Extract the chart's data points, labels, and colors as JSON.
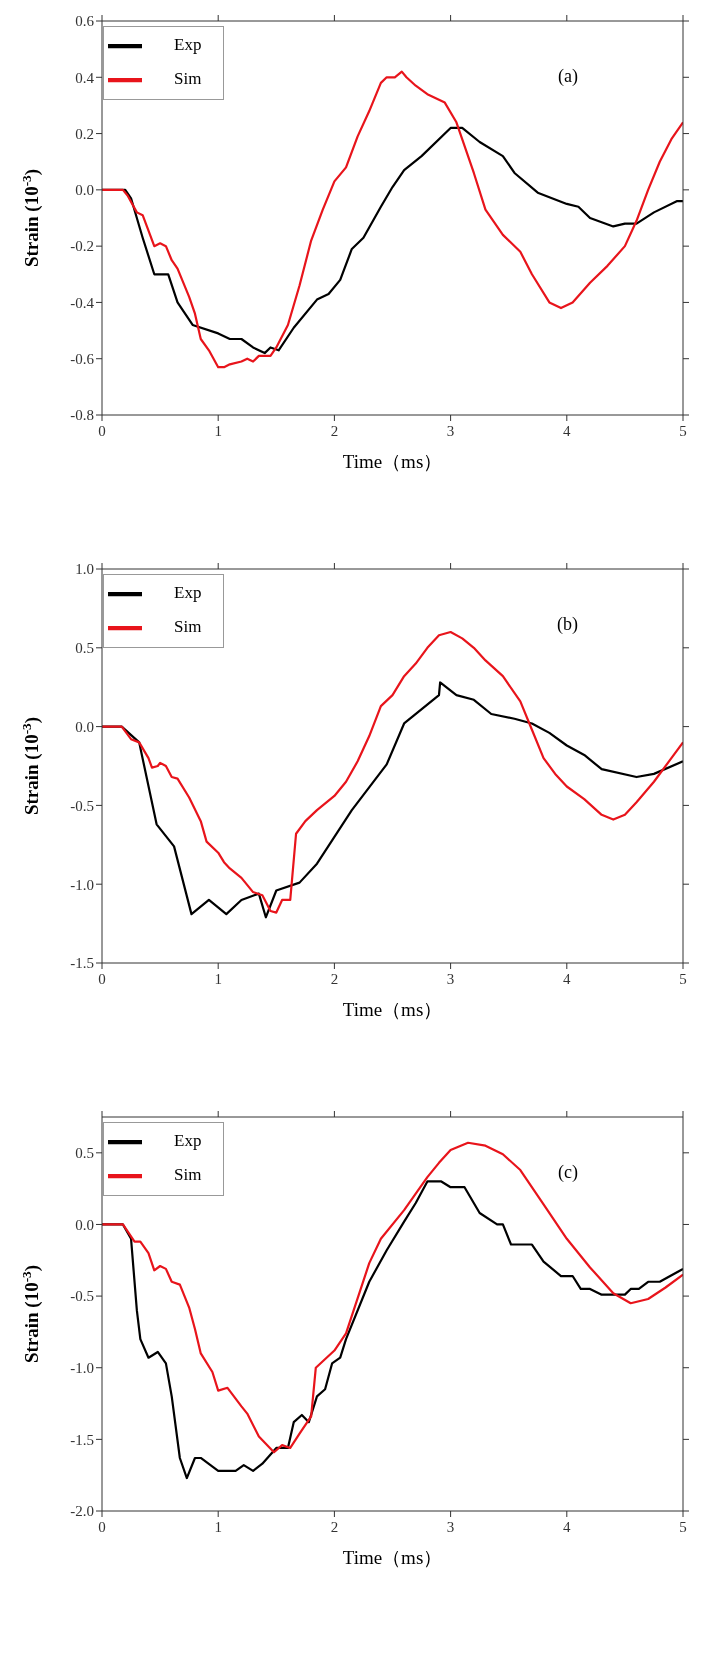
{
  "chart_data": [
    {
      "type": "line",
      "xlabel": "Time（ms）",
      "ylabel": "Strain (10$^{-3}$)",
      "annotations": [
        "(a)"
      ],
      "legend": "top left",
      "grid": false,
      "xlim": [
        0,
        5
      ],
      "xticks": [
        0,
        1,
        2,
        3,
        4,
        5
      ],
      "ylim": [
        -0.8,
        0.6
      ],
      "yticks": [
        {
          "value": -0.8,
          "label": "-0.8"
        },
        {
          "value": -0.6,
          "label": "-0.6"
        },
        {
          "value": -0.4,
          "label": "-0.4"
        },
        {
          "value": -0.2,
          "label": "-0.2"
        },
        {
          "value": 0,
          "label": "0.0"
        },
        0.2,
        0.4,
        0.6
      ],
      "series": [
        {
          "name": "Exp",
          "color": "#000000",
          "x": [
            0,
            0.2,
            0.25,
            0.35,
            0.45,
            0.57,
            0.65,
            0.78,
            1.0,
            1.1,
            1.2,
            1.3,
            1.4,
            1.45,
            1.52,
            1.65,
            1.85,
            1.95,
            2.05,
            2.15,
            2.25,
            2.4,
            2.5,
            2.6,
            2.75,
            3.0,
            3.1,
            3.25,
            3.45,
            3.55,
            3.75,
            4.0,
            4.1,
            4.2,
            4.4,
            4.5,
            4.6,
            4.75,
            4.95,
            5.0
          ],
          "values": [
            0,
            0,
            -0.03,
            -0.17,
            -0.3,
            -0.3,
            -0.4,
            -0.48,
            -0.51,
            -0.53,
            -0.53,
            -0.56,
            -0.58,
            -0.56,
            -0.57,
            -0.49,
            -0.39,
            -0.37,
            -0.32,
            -0.21,
            -0.17,
            -0.06,
            0.01,
            0.07,
            0.12,
            0.22,
            0.22,
            0.17,
            0.12,
            0.06,
            -0.01,
            -0.05,
            -0.06,
            -0.1,
            -0.13,
            -0.12,
            -0.12,
            -0.08,
            -0.04,
            -0.04
          ]
        },
        {
          "name": "Sim",
          "color": "#e8141b",
          "x": [
            0,
            0.18,
            0.22,
            0.3,
            0.35,
            0.45,
            0.5,
            0.55,
            0.6,
            0.65,
            0.75,
            0.8,
            0.85,
            0.92,
            1.0,
            1.05,
            1.1,
            1.2,
            1.25,
            1.3,
            1.35,
            1.45,
            1.5,
            1.6,
            1.7,
            1.8,
            1.9,
            2.0,
            2.1,
            2.2,
            2.3,
            2.4,
            2.45,
            2.52,
            2.58,
            2.62,
            2.7,
            2.8,
            2.95,
            3.05,
            3.2,
            3.3,
            3.45,
            3.6,
            3.7,
            3.85,
            3.95,
            4.05,
            4.2,
            4.35,
            4.5,
            4.6,
            4.7,
            4.8,
            4.9,
            5.0
          ],
          "values": [
            0,
            0,
            -0.02,
            -0.08,
            -0.09,
            -0.2,
            -0.19,
            -0.2,
            -0.25,
            -0.28,
            -0.38,
            -0.44,
            -0.53,
            -0.57,
            -0.63,
            -0.63,
            -0.62,
            -0.61,
            -0.6,
            -0.61,
            -0.59,
            -0.59,
            -0.56,
            -0.48,
            -0.34,
            -0.18,
            -0.07,
            0.03,
            0.08,
            0.19,
            0.28,
            0.38,
            0.4,
            0.4,
            0.42,
            0.4,
            0.37,
            0.34,
            0.31,
            0.24,
            0.06,
            -0.07,
            -0.16,
            -0.22,
            -0.3,
            -0.4,
            -0.42,
            -0.4,
            -0.33,
            -0.27,
            -0.2,
            -0.11,
            0.0,
            0.1,
            0.18,
            0.24
          ]
        }
      ]
    },
    {
      "type": "line",
      "xlabel": "Time（ms）",
      "ylabel": "Strain (10$^{-3}$)",
      "annotations": [
        "(b)"
      ],
      "legend": "top left",
      "grid": false,
      "xlim": [
        0,
        5
      ],
      "xticks": [
        0,
        1,
        2,
        3,
        4,
        5
      ],
      "ylim": [
        -1.5,
        1.0
      ],
      "yticks": [
        {
          "value": -1.5,
          "label": "-1.5"
        },
        {
          "value": -1.0,
          "label": "-1.0"
        },
        {
          "value": -0.5,
          "label": "-0.5"
        },
        {
          "value": 0,
          "label": "0.0"
        },
        0.5,
        {
          "value": 1.0,
          "label": "1.0"
        }
      ],
      "series": [
        {
          "name": "Exp",
          "color": "#000000",
          "x": [
            0,
            0.17,
            0.32,
            0.47,
            0.62,
            0.77,
            0.92,
            1.07,
            1.2,
            1.35,
            1.41,
            1.5,
            1.7,
            1.85,
            2.15,
            2.45,
            2.6,
            2.9,
            2.91,
            3.05,
            3.2,
            3.35,
            3.55,
            3.7,
            3.85,
            4.0,
            4.15,
            4.3,
            4.6,
            4.75,
            5.0
          ],
          "values": [
            0,
            0,
            -0.1,
            -0.62,
            -0.76,
            -1.19,
            -1.1,
            -1.19,
            -1.1,
            -1.06,
            -1.21,
            -1.04,
            -0.99,
            -0.87,
            -0.53,
            -0.24,
            0.02,
            0.2,
            0.28,
            0.2,
            0.17,
            0.08,
            0.05,
            0.02,
            -0.04,
            -0.12,
            -0.18,
            -0.27,
            -0.32,
            -0.3,
            -0.22
          ]
        },
        {
          "name": "Sim",
          "color": "#e8141b",
          "x": [
            0,
            0.17,
            0.25,
            0.32,
            0.4,
            0.43,
            0.48,
            0.5,
            0.55,
            0.6,
            0.65,
            0.75,
            0.85,
            0.9,
            1.0,
            1.05,
            1.1,
            1.2,
            1.3,
            1.38,
            1.45,
            1.5,
            1.55,
            1.62,
            1.67,
            1.75,
            1.85,
            2.0,
            2.1,
            2.2,
            2.3,
            2.4,
            2.5,
            2.6,
            2.7,
            2.8,
            2.9,
            3.0,
            3.1,
            3.2,
            3.3,
            3.45,
            3.6,
            3.7,
            3.8,
            3.9,
            4.0,
            4.15,
            4.3,
            4.4,
            4.5,
            4.6,
            4.75,
            4.9,
            5.0
          ],
          "values": [
            0,
            0,
            -0.08,
            -0.1,
            -0.2,
            -0.26,
            -0.25,
            -0.23,
            -0.25,
            -0.32,
            -0.33,
            -0.45,
            -0.6,
            -0.73,
            -0.8,
            -0.86,
            -0.9,
            -0.96,
            -1.05,
            -1.07,
            -1.17,
            -1.18,
            -1.1,
            -1.1,
            -0.68,
            -0.6,
            -0.53,
            -0.44,
            -0.35,
            -0.22,
            -0.06,
            0.13,
            0.2,
            0.32,
            0.4,
            0.5,
            0.58,
            0.6,
            0.56,
            0.5,
            0.42,
            0.32,
            0.16,
            -0.02,
            -0.2,
            -0.3,
            -0.38,
            -0.46,
            -0.56,
            -0.59,
            -0.56,
            -0.48,
            -0.35,
            -0.2,
            -0.1
          ]
        }
      ]
    },
    {
      "type": "line",
      "xlabel": "Time（ms）",
      "ylabel": "Strain (10$^{-3}$)",
      "annotations": [
        "(c)"
      ],
      "legend": "top left",
      "grid": false,
      "xlim": [
        0,
        5
      ],
      "xticks": [
        0,
        1,
        2,
        3,
        4,
        5
      ],
      "ylim": [
        -2.0,
        0.75
      ],
      "yticks": [
        {
          "value": -2.0,
          "label": "-2.0"
        },
        {
          "value": -1.5,
          "label": "-1.5"
        },
        {
          "value": -1.0,
          "label": "-1.0"
        },
        {
          "value": -0.5,
          "label": "-0.5"
        },
        {
          "value": 0,
          "label": "0.0"
        },
        0.5
      ],
      "series": [
        {
          "name": "Exp",
          "color": "#000000",
          "x": [
            0,
            0.18,
            0.25,
            0.3,
            0.33,
            0.4,
            0.48,
            0.55,
            0.6,
            0.67,
            0.73,
            0.8,
            0.85,
            1.0,
            1.15,
            1.22,
            1.3,
            1.38,
            1.5,
            1.6,
            1.65,
            1.72,
            1.78,
            1.85,
            1.92,
            1.98,
            2.05,
            2.1,
            2.3,
            2.45,
            2.6,
            2.7,
            2.8,
            2.92,
            3.0,
            3.12,
            3.25,
            3.4,
            3.45,
            3.52,
            3.7,
            3.8,
            3.95,
            4.05,
            4.12,
            4.2,
            4.3,
            4.5,
            4.55,
            4.62,
            4.7,
            4.8,
            5.0
          ],
          "values": [
            0,
            0,
            -0.1,
            -0.6,
            -0.8,
            -0.93,
            -0.89,
            -0.97,
            -1.2,
            -1.63,
            -1.77,
            -1.63,
            -1.63,
            -1.72,
            -1.72,
            -1.68,
            -1.72,
            -1.67,
            -1.56,
            -1.56,
            -1.38,
            -1.33,
            -1.38,
            -1.2,
            -1.15,
            -0.97,
            -0.93,
            -0.8,
            -0.4,
            -0.18,
            0.02,
            0.15,
            0.3,
            0.3,
            0.26,
            0.26,
            0.08,
            0.0,
            0.0,
            -0.14,
            -0.14,
            -0.26,
            -0.36,
            -0.36,
            -0.45,
            -0.45,
            -0.49,
            -0.49,
            -0.45,
            -0.45,
            -0.4,
            -0.4,
            -0.31
          ]
        },
        {
          "name": "Sim",
          "color": "#e8141b",
          "x": [
            0,
            0.18,
            0.28,
            0.33,
            0.4,
            0.45,
            0.5,
            0.55,
            0.6,
            0.67,
            0.75,
            0.8,
            0.85,
            0.95,
            1.0,
            1.08,
            1.2,
            1.25,
            1.35,
            1.48,
            1.55,
            1.62,
            1.7,
            1.8,
            1.84,
            2.0,
            2.1,
            2.3,
            2.4,
            2.6,
            2.8,
            2.9,
            3.0,
            3.15,
            3.3,
            3.45,
            3.6,
            3.8,
            4.0,
            4.2,
            4.4,
            4.55,
            4.7,
            4.85,
            5.0
          ],
          "values": [
            0,
            0,
            -0.12,
            -0.12,
            -0.2,
            -0.32,
            -0.29,
            -0.31,
            -0.4,
            -0.42,
            -0.58,
            -0.73,
            -0.9,
            -1.03,
            -1.16,
            -1.14,
            -1.27,
            -1.32,
            -1.48,
            -1.59,
            -1.54,
            -1.56,
            -1.46,
            -1.34,
            -1.0,
            -0.88,
            -0.76,
            -0.27,
            -0.1,
            0.1,
            0.33,
            0.43,
            0.52,
            0.57,
            0.55,
            0.49,
            0.38,
            0.14,
            -0.1,
            -0.3,
            -0.48,
            -0.55,
            -0.52,
            -0.44,
            -0.35
          ]
        }
      ]
    }
  ]
}
